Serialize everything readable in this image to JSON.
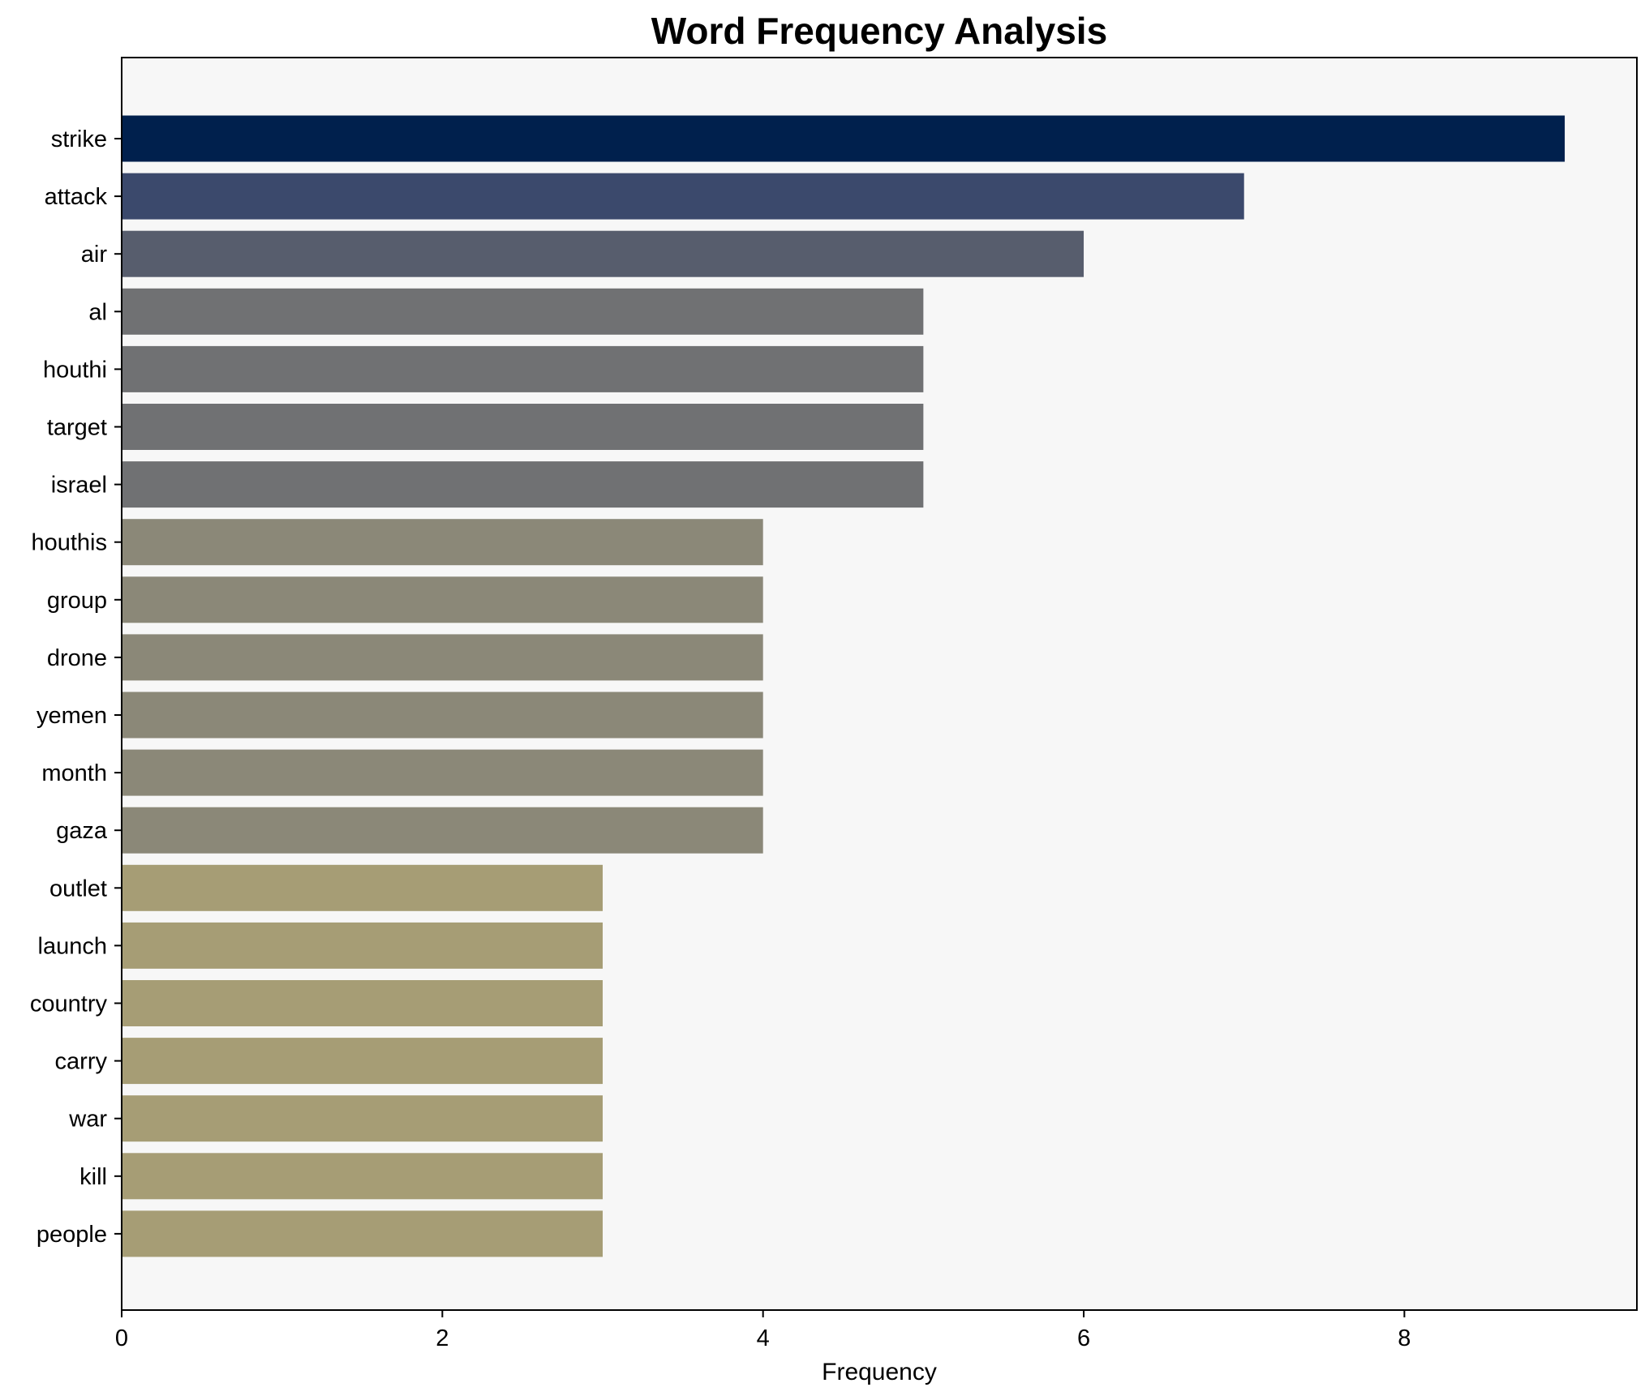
{
  "chart_data": {
    "type": "bar",
    "orientation": "horizontal",
    "title": "Word Frequency Analysis",
    "xlabel": "Frequency",
    "ylabel": "",
    "xlim": [
      0,
      9.45
    ],
    "x_ticks": [
      0,
      2,
      4,
      6,
      8
    ],
    "grid": false,
    "legend": "none",
    "categories": [
      "strike",
      "attack",
      "air",
      "al",
      "houthi",
      "target",
      "israel",
      "houthis",
      "group",
      "drone",
      "yemen",
      "month",
      "gaza",
      "outlet",
      "launch",
      "country",
      "carry",
      "war",
      "kill",
      "people"
    ],
    "values": [
      9,
      7,
      6,
      5,
      5,
      5,
      5,
      4,
      4,
      4,
      4,
      4,
      4,
      3,
      3,
      3,
      3,
      3,
      3,
      3
    ],
    "colors": {
      "9": "#00204d",
      "7": "#3b496c",
      "6": "#575d6d",
      "5": "#707173",
      "4": "#8b8878",
      "3": "#a69d75"
    },
    "plot_background": "#f7f7f7"
  }
}
